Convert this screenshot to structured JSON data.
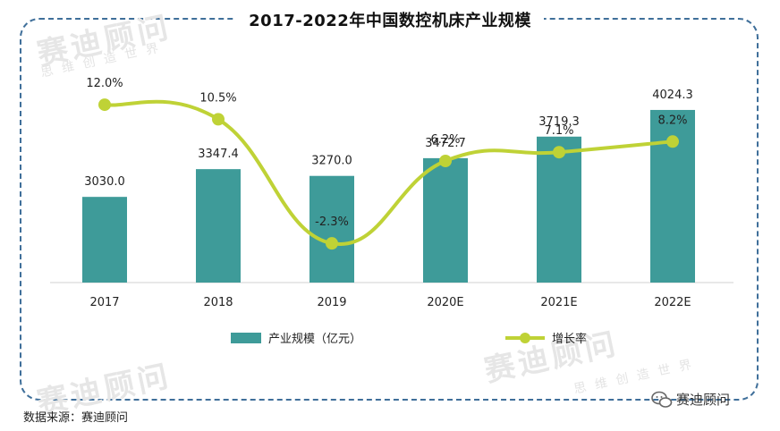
{
  "chart_data": {
    "type": "bar",
    "title": "2017-2022年中国数控机床产业规模",
    "categories": [
      "2017",
      "2018",
      "2019",
      "2020E",
      "2021E",
      "2022E"
    ],
    "series": [
      {
        "name": "产业规模（亿元）",
        "type": "bar",
        "values": [
          3030.0,
          3347.4,
          3270.0,
          3472.7,
          3719.3,
          4024.3
        ],
        "labels": [
          "3030.0",
          "3347.4",
          "3270.0",
          "3472.7",
          "3719.3",
          "4024.3"
        ],
        "color": "#3e9b99"
      },
      {
        "name": "增长率",
        "type": "line",
        "values": [
          12.0,
          10.5,
          -2.3,
          6.2,
          7.1,
          8.2
        ],
        "labels": [
          "12.0%",
          "10.5%",
          "-2.3%",
          "6.2%",
          "7.1%",
          "8.2%"
        ],
        "color": "#bfd236"
      }
    ],
    "grid": false,
    "legend": "bottom"
  },
  "source": "数据来源：赛迪顾问",
  "brand": "赛迪顾问",
  "watermark": {
    "main": "赛迪顾问",
    "sub": "思维创造世界"
  }
}
